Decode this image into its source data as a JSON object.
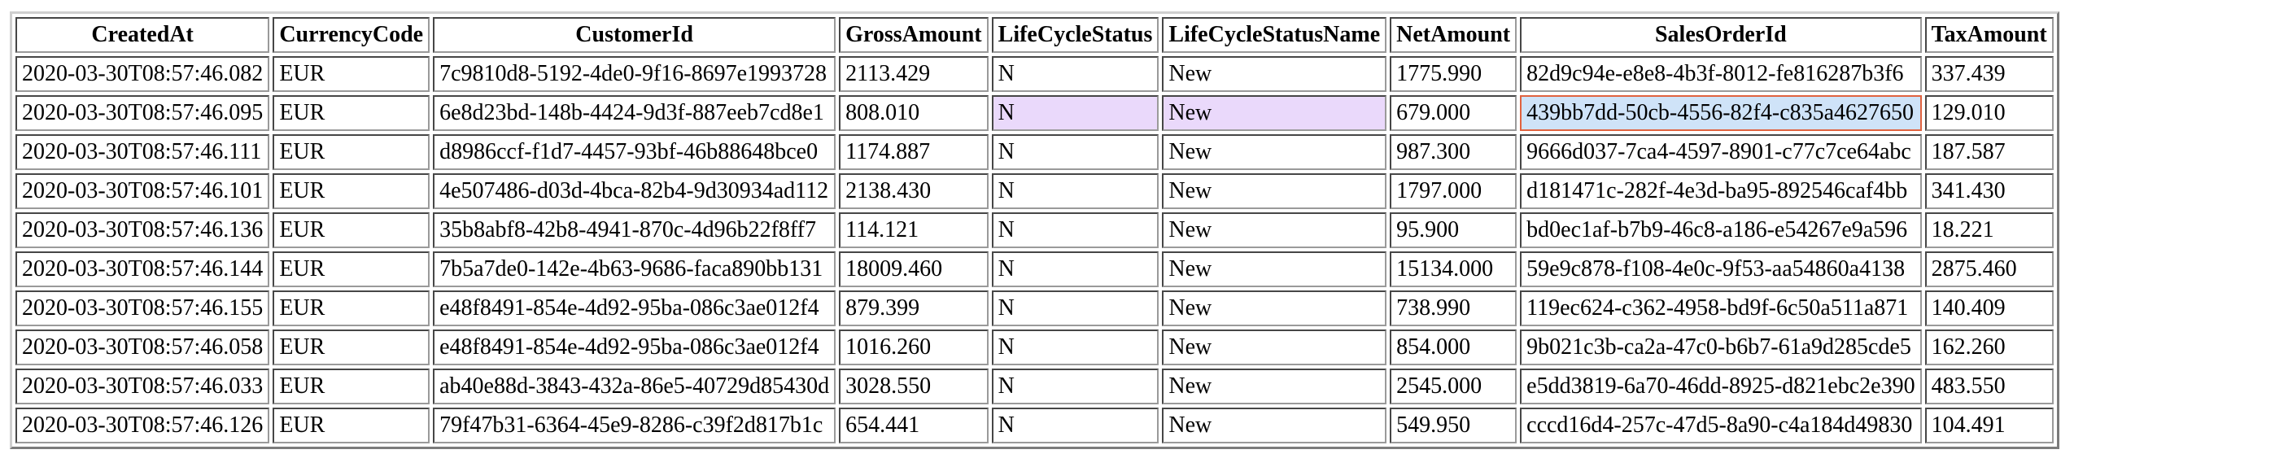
{
  "table": {
    "columns": [
      "CreatedAt",
      "CurrencyCode",
      "CustomerId",
      "GrossAmount",
      "LifeCycleStatus",
      "LifeCycleStatusName",
      "NetAmount",
      "SalesOrderId",
      "TaxAmount"
    ],
    "rows": [
      [
        "2020-03-30T08:57:46.082",
        "EUR",
        "7c9810d8-5192-4de0-9f16-8697e1993728",
        "2113.429",
        "N",
        "New",
        "1775.990",
        "82d9c94e-e8e8-4b3f-8012-fe816287b3f6",
        "337.439"
      ],
      [
        "2020-03-30T08:57:46.095",
        "EUR",
        "6e8d23bd-148b-4424-9d3f-887eeb7cd8e1",
        "808.010",
        "N",
        "New",
        "679.000",
        "439bb7dd-50cb-4556-82f4-c835a4627650",
        "129.010"
      ],
      [
        "2020-03-30T08:57:46.111",
        "EUR",
        "d8986ccf-f1d7-4457-93bf-46b88648bce0",
        "1174.887",
        "N",
        "New",
        "987.300",
        "9666d037-7ca4-4597-8901-c77c7ce64abc",
        "187.587"
      ],
      [
        "2020-03-30T08:57:46.101",
        "EUR",
        "4e507486-d03d-4bca-82b4-9d30934ad112",
        "2138.430",
        "N",
        "New",
        "1797.000",
        "d181471c-282f-4e3d-ba95-892546caf4bb",
        "341.430"
      ],
      [
        "2020-03-30T08:57:46.136",
        "EUR",
        "35b8abf8-42b8-4941-870c-4d96b22f8ff7",
        "114.121",
        "N",
        "New",
        "95.900",
        "bd0ec1af-b7b9-46c8-a186-e54267e9a596",
        "18.221"
      ],
      [
        "2020-03-30T08:57:46.144",
        "EUR",
        "7b5a7de0-142e-4b63-9686-faca890bb131",
        "18009.460",
        "N",
        "New",
        "15134.000",
        "59e9c878-f108-4e0c-9f53-aa54860a4138",
        "2875.460"
      ],
      [
        "2020-03-30T08:57:46.155",
        "EUR",
        "e48f8491-854e-4d92-95ba-086c3ae012f4",
        "879.399",
        "N",
        "New",
        "738.990",
        "119ec624-c362-4958-bd9f-6c50a511a871",
        "140.409"
      ],
      [
        "2020-03-30T08:57:46.058",
        "EUR",
        "e48f8491-854e-4d92-95ba-086c3ae012f4",
        "1016.260",
        "N",
        "New",
        "854.000",
        "9b021c3b-ca2a-47c0-b6b7-61a9d285cde5",
        "162.260"
      ],
      [
        "2020-03-30T08:57:46.033",
        "EUR",
        "ab40e88d-3843-432a-86e5-40729d85430d",
        "3028.550",
        "N",
        "New",
        "2545.000",
        "e5dd3819-6a70-46dd-8925-d821ebc2e390",
        "483.550"
      ],
      [
        "2020-03-30T08:57:46.126",
        "EUR",
        "79f47b31-6364-45e9-8286-c39f2d817b1c",
        "654.441",
        "N",
        "New",
        "549.950",
        "cccd16d4-257c-47d5-8a90-c4a184d49830",
        "104.491"
      ]
    ],
    "selection": {
      "highlighted_row": 1,
      "highlighted_columns": [
        4,
        5
      ],
      "highlight_color": "#ead9fb",
      "active_cell": {
        "row": 1,
        "column": 7
      },
      "active_cell_color": "#cfe3f8",
      "active_cell_border_color": "#e0623f"
    }
  }
}
